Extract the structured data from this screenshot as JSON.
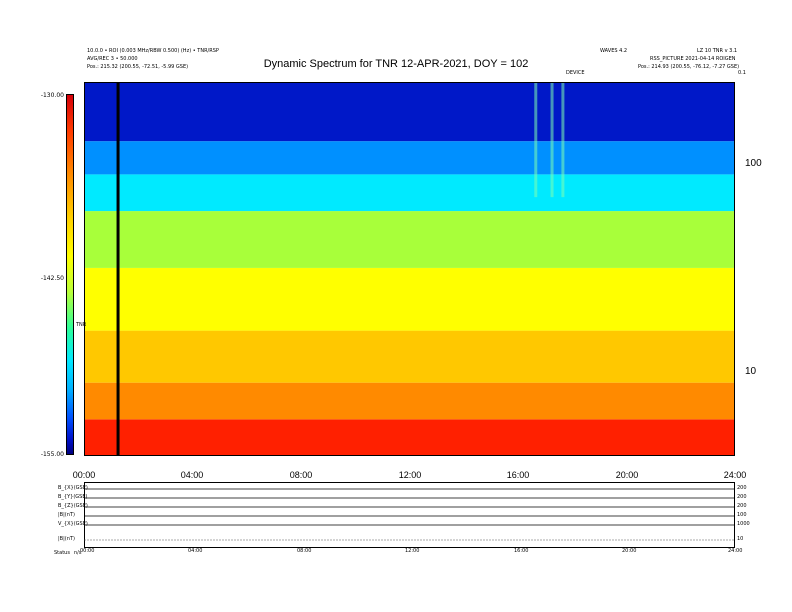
{
  "header": {
    "left_line1": "10.0.0 • ROI (0.003 MHz/RBW 0.500) (Hz) • TNR/RSP",
    "left_line2": "AVG/REC 3 • 50.000",
    "left_line3": "Pos.: 215.32 (200.55, -72.51, -5.99 GSE)",
    "right_line1": "WAVES 4.2",
    "right_line2": "LZ 10 TNR v 3.1",
    "right_line3": "RSS_PICTURE 2021-04-14 ROIGEN",
    "right_line4": "Pos.: 214.93 (200.55, -76.12, -7.27 GSE)",
    "top_right_marker": "0.1",
    "event_marker": "DEVICE"
  },
  "chart_data": {
    "type": "heatmap",
    "title": "Dynamic Spectrum for TNR 12-APR-2021, DOY = 102",
    "x_ticks": [
      "00:00",
      "04:00",
      "08:00",
      "12:00",
      "16:00",
      "20:00",
      "24:00"
    ],
    "x_range": [
      0,
      24
    ],
    "y_scale": "log",
    "y_ticks": [
      "100",
      "10"
    ],
    "y_range_khz": [
      4,
      250
    ],
    "colorbar": {
      "label": "TNR",
      "ticks": [
        "-130.00",
        "-142.50",
        "-155.00"
      ],
      "range": [
        -155,
        -130
      ]
    },
    "bands": [
      {
        "f_from": 4,
        "f_to": 6,
        "color": "#ff2000"
      },
      {
        "f_from": 6,
        "f_to": 9,
        "color": "#ff8a00"
      },
      {
        "f_from": 9,
        "f_to": 16,
        "color": "#ffc800"
      },
      {
        "f_from": 16,
        "f_to": 32,
        "color": "#ffff00"
      },
      {
        "f_from": 32,
        "f_to": 60,
        "color": "#a8ff3a"
      },
      {
        "f_from": 60,
        "f_to": 90,
        "color": "#00eaff"
      },
      {
        "f_from": 90,
        "f_to": 130,
        "color": "#0090ff"
      },
      {
        "f_from": 130,
        "f_to": 250,
        "color": "#0018c8"
      }
    ],
    "data_gap_hour": 1.2,
    "burst_hours": [
      16.6,
      17.2,
      17.6
    ],
    "bottom_panels": {
      "labels": [
        "B_{X}(GSE)",
        "B_{Y}(GSE)",
        "B_{Z}(GSE)",
        "|B|(nT)",
        "V_{X}(GSE)",
        "|B|(nT)"
      ],
      "right_ticks": [
        "200",
        "200",
        "200",
        "100",
        "1000",
        "10"
      ],
      "x_ticks": [
        "00:00",
        "04:00",
        "08:00",
        "12:00",
        "16:00",
        "20:00",
        "24:00"
      ],
      "footer_label": "Status",
      "footer_value": "n/s"
    }
  }
}
